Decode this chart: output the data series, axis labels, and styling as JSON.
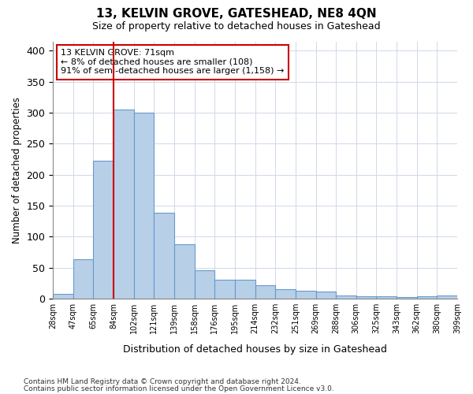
{
  "title": "13, KELVIN GROVE, GATESHEAD, NE8 4QN",
  "subtitle": "Size of property relative to detached houses in Gateshead",
  "xlabel": "Distribution of detached houses by size in Gateshead",
  "ylabel": "Number of detached properties",
  "bar_values": [
    8,
    63,
    222,
    305,
    300,
    139,
    88,
    46,
    30,
    30,
    22,
    15,
    13,
    11,
    5,
    4,
    4,
    3,
    4,
    5
  ],
  "bar_labels": [
    "28sqm",
    "47sqm",
    "65sqm",
    "84sqm",
    "102sqm",
    "121sqm",
    "139sqm",
    "158sqm",
    "176sqm",
    "195sqm",
    "214sqm",
    "232sqm",
    "251sqm",
    "269sqm",
    "288sqm",
    "306sqm",
    "325sqm",
    "343sqm",
    "362sqm",
    "380sqm",
    "399sqm"
  ],
  "bar_color": "#b8cfe8",
  "bar_edge_color": "#6699cc",
  "vline_color": "#cc0000",
  "vline_pos": 2.5,
  "annotation_text": "13 KELVIN GROVE: 71sqm\n← 8% of detached houses are smaller (108)\n91% of semi-detached houses are larger (1,158) →",
  "annotation_box_color": "#ffffff",
  "annotation_box_edge": "#cc0000",
  "ylim": [
    0,
    415
  ],
  "yticks": [
    0,
    50,
    100,
    150,
    200,
    250,
    300,
    350,
    400
  ],
  "footer1": "Contains HM Land Registry data © Crown copyright and database right 2024.",
  "footer2": "Contains public sector information licensed under the Open Government Licence v3.0.",
  "bg_color": "#ffffff",
  "plot_bg": "#ffffff",
  "grid_color": "#d0d8e8"
}
